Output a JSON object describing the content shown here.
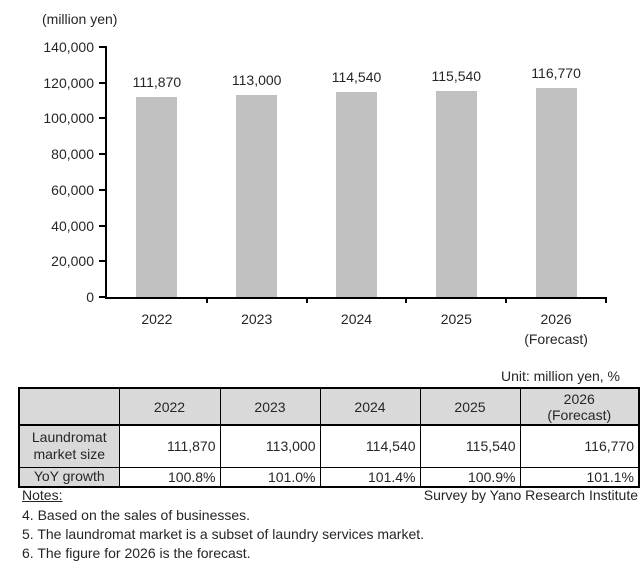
{
  "chart_data": {
    "type": "bar",
    "title": "",
    "unit_label": "(million yen)",
    "categories": [
      "2022",
      "2023",
      "2024",
      "2025",
      "2026\n(Forecast)"
    ],
    "values": [
      111870,
      113000,
      114540,
      115540,
      116770
    ],
    "value_labels": [
      "111,870",
      "113,000",
      "114,540",
      "115,540",
      "116,770"
    ],
    "ylim": [
      0,
      140000
    ],
    "yticks": [
      0,
      20000,
      40000,
      60000,
      80000,
      100000,
      120000,
      140000
    ],
    "grid": false,
    "legend": "none",
    "bar_color": "#c1c1c1",
    "axis_color": "#000000"
  },
  "table": {
    "unit_note": "Unit: million yen, %",
    "header_bg": "#d9d9d9",
    "col_headers": [
      "",
      "2022",
      "2023",
      "2024",
      "2025",
      "2026\n(Forecast)"
    ],
    "rows": [
      {
        "label": "Laundromat market size",
        "values": [
          "111,870",
          "113,000",
          "114,540",
          "115,540",
          "116,770"
        ]
      },
      {
        "label": "YoY growth",
        "values": [
          "100.8%",
          "101.0%",
          "101.4%",
          "100.9%",
          "101.1%"
        ]
      }
    ]
  },
  "notes": {
    "heading": "Notes:",
    "survey_credit": "Survey by Yano Research Institute",
    "items": [
      "4. Based on the sales of businesses.",
      "5. The laundromat market is a subset of laundry services market.",
      "6. The figure for 2026 is the forecast."
    ]
  }
}
